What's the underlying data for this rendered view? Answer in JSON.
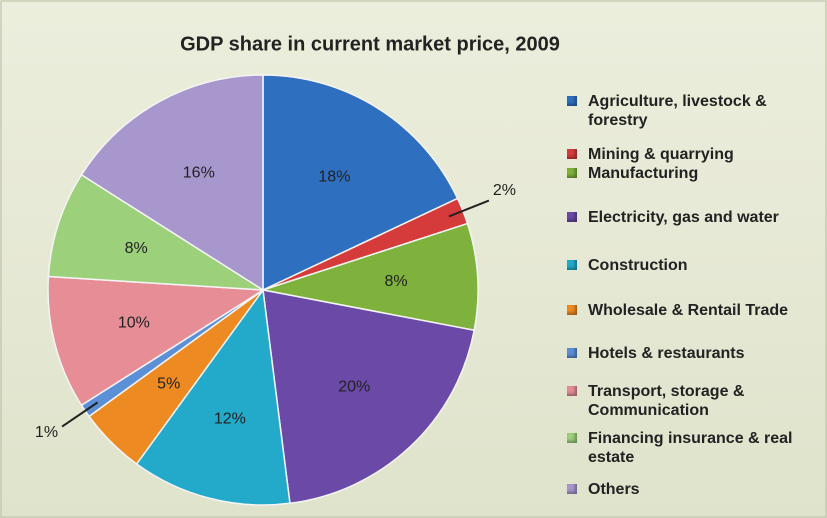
{
  "chart_data": {
    "type": "pie",
    "title": "GDP share in current market price, 2009",
    "categories": [
      "Agriculture, livestock & forestry",
      "Mining & quarrying",
      "Manufacturing",
      "Electricity, gas and water",
      "Construction",
      "Wholesale & Rentail Trade",
      "Hotels & restaurants",
      "Transport, storage & Communication",
      "Financing insurance & real estate",
      "Others"
    ],
    "values": [
      18,
      2,
      8,
      20,
      12,
      5,
      1,
      10,
      8,
      16
    ],
    "value_labels": [
      "18%",
      "2%",
      "8%",
      "20%",
      "12%",
      "5%",
      "1%",
      "10%",
      "8%",
      "16%"
    ],
    "colors": [
      "#2f6fbf",
      "#d63b3b",
      "#7fb23c",
      "#6a49a7",
      "#23a9c9",
      "#ee8a22",
      "#5b8fd6",
      "#e68d96",
      "#9dd07b",
      "#a897cc"
    ],
    "legend": "right"
  }
}
